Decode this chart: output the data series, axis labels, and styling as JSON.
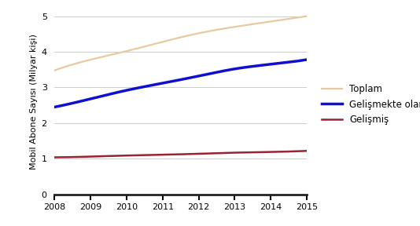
{
  "years": [
    2008,
    2009,
    2010,
    2011,
    2012,
    2013,
    2014,
    2015
  ],
  "toplam": [
    3.48,
    3.78,
    4.02,
    4.28,
    4.52,
    4.7,
    4.85,
    5.0
  ],
  "gelismekte_olan": [
    2.45,
    2.68,
    2.92,
    3.12,
    3.32,
    3.52,
    3.65,
    3.78
  ],
  "gelismis": [
    1.04,
    1.06,
    1.09,
    1.11,
    1.14,
    1.17,
    1.19,
    1.22
  ],
  "toplam_color": "#E8C9A0",
  "gelismekte_olan_color": "#1010CC",
  "gelismis_color": "#992233",
  "ylabel": "Mobil Abone Sayısı (Milyar kişi)",
  "ylim": [
    0,
    5.2
  ],
  "yticks": [
    0,
    1,
    2,
    3,
    4,
    5
  ],
  "legend_labels": [
    "Toplam",
    "Gelişmekte olan",
    "Gelişmiş"
  ],
  "grid_color": "#cccccc",
  "ylabel_fontsize": 8,
  "tick_fontsize": 8,
  "legend_fontsize": 8.5,
  "linewidth_toplam": 1.6,
  "linewidth_gelismekte": 2.5,
  "linewidth_gelismis": 1.8
}
